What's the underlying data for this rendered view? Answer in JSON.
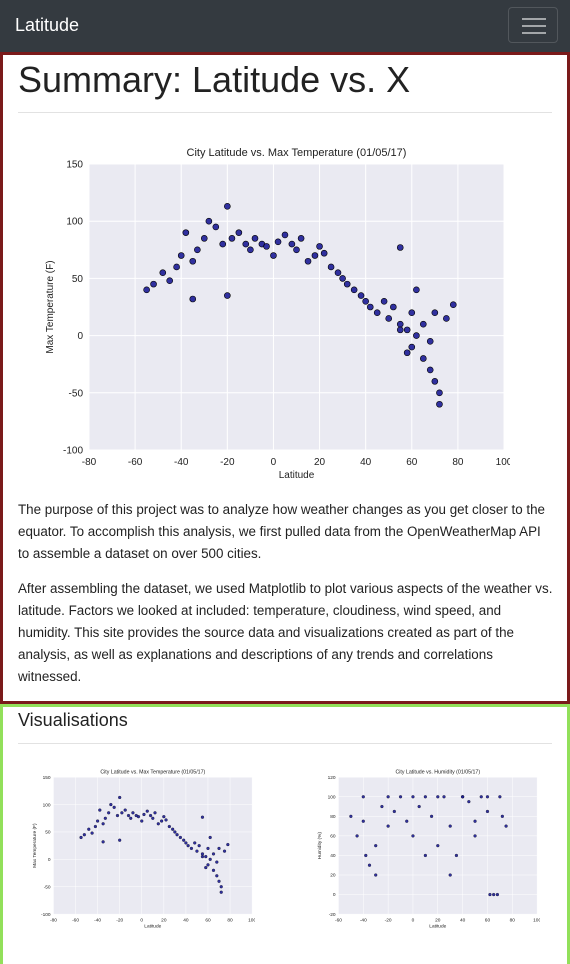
{
  "navbar": {
    "brand": "Latitude"
  },
  "summary": {
    "title": "Summary: Latitude vs. X",
    "chart": {
      "type": "scatter",
      "title": "City Latitude vs. Max Temperature (01/05/17)",
      "xlabel": "Latitude",
      "ylabel": "Max Temperature (F)",
      "x": [
        -55,
        -52,
        -48,
        -45,
        -42,
        -40,
        -38,
        -35,
        -33,
        -30,
        -28,
        -25,
        -22,
        -20,
        -18,
        -15,
        -12,
        -10,
        -8,
        -5,
        -3,
        0,
        2,
        5,
        8,
        10,
        12,
        15,
        18,
        20,
        22,
        25,
        28,
        30,
        32,
        35,
        38,
        40,
        42,
        45,
        48,
        50,
        52,
        55,
        55,
        58,
        60,
        60,
        62,
        62,
        65,
        65,
        68,
        68,
        70,
        70,
        72,
        72,
        75,
        78,
        55,
        58,
        -20,
        -35
      ],
      "values": [
        40,
        45,
        55,
        48,
        60,
        70,
        90,
        65,
        75,
        85,
        100,
        95,
        80,
        113,
        85,
        90,
        80,
        75,
        85,
        80,
        78,
        70,
        82,
        88,
        80,
        75,
        85,
        65,
        70,
        78,
        72,
        60,
        55,
        50,
        45,
        40,
        35,
        30,
        25,
        20,
        30,
        15,
        25,
        10,
        77,
        5,
        20,
        -10,
        0,
        40,
        -20,
        10,
        -30,
        -5,
        -40,
        20,
        -50,
        -60,
        15,
        27,
        5,
        -15,
        35,
        32
      ],
      "color": "#1c1c96",
      "xlim": [
        -80,
        100
      ],
      "xticks": [
        -80,
        -60,
        -40,
        -20,
        0,
        20,
        40,
        60,
        80,
        100
      ],
      "ylim": [
        -100,
        150
      ],
      "yticks": [
        -100,
        -50,
        0,
        50,
        100,
        150
      ],
      "grid": true
    },
    "paragraphs": [
      "The purpose of this project was to analyze how weather changes as you get closer to the equator. To accomplish this analysis, we first pulled data from the OpenWeatherMap API to assemble a dataset on over 500 cities.",
      "After assembling the dataset, we used Matplotlib to plot various aspects of the weather vs. latitude. Factors we looked at included: temperature, cloudiness, wind speed, and humidity. This site provides the source data and visualizations created as part of the analysis, as well as explanations and descriptions of any trends and correlations witnessed."
    ]
  },
  "visualisations": {
    "title": "Visualisations",
    "humidity_chart": {
      "type": "scatter",
      "title": "City Latitude vs. Humidity (01/05/17)",
      "xlabel": "Latitude",
      "ylabel": "Humidity (%)",
      "x": [
        -50,
        -45,
        -40,
        -38,
        -35,
        -30,
        -25,
        -20,
        -15,
        -10,
        -5,
        0,
        5,
        10,
        15,
        20,
        25,
        30,
        35,
        40,
        45,
        50,
        55,
        60,
        62,
        65,
        68,
        70,
        72,
        75,
        -40,
        -20,
        0,
        20,
        40,
        60,
        -30,
        10,
        30,
        50
      ],
      "values": [
        80,
        60,
        75,
        40,
        30,
        20,
        90,
        70,
        85,
        100,
        75,
        60,
        90,
        100,
        80,
        50,
        100,
        70,
        40,
        100,
        95,
        60,
        100,
        85,
        0,
        0,
        0,
        100,
        80,
        70,
        100,
        100,
        100,
        100,
        100,
        100,
        50,
        40,
        20,
        75
      ],
      "color": "#1c1c96",
      "xlim": [
        -60,
        100
      ],
      "xticks": [
        -60,
        -40,
        -20,
        0,
        20,
        40,
        60,
        80,
        100
      ],
      "ylim": [
        -20,
        120
      ],
      "yticks": [
        -20,
        0,
        20,
        40,
        60,
        80,
        100,
        120
      ],
      "grid": true
    }
  }
}
